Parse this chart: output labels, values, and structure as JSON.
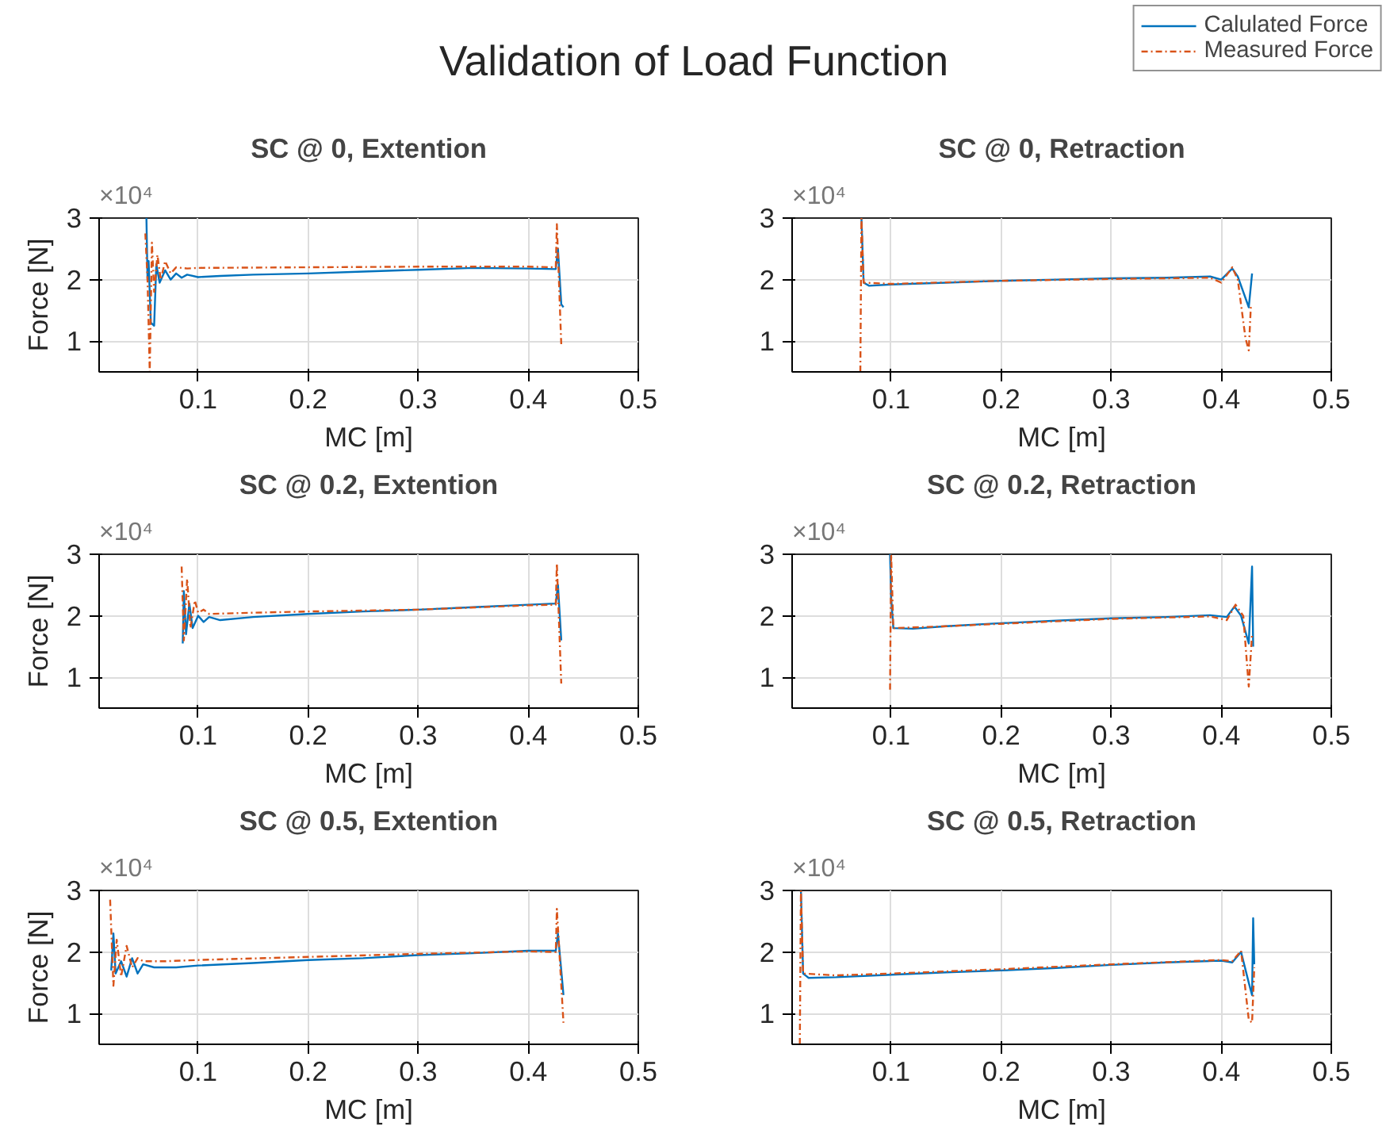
{
  "chart_data": [
    {
      "type": "other",
      "title": "Validation of Load Function"
    },
    {
      "type": "line",
      "title": "SC @ 0, Extention",
      "xlabel": "MC [m]",
      "ylabel": "Force [N]",
      "annotations": [
        "×10⁴"
      ],
      "xlim": [
        0.01,
        0.5
      ],
      "ylim": [
        0.5,
        3
      ],
      "xticks": [
        0.1,
        0.2,
        0.3,
        0.4,
        0.5
      ],
      "yticks": [
        1,
        2,
        3
      ],
      "grid": true,
      "series": [
        {
          "name": "Calulated Force",
          "color": "#0072bd",
          "line_style": "solid",
          "x": [
            0.053,
            0.054,
            0.055,
            0.057,
            0.06,
            0.062,
            0.065,
            0.07,
            0.075,
            0.08,
            0.085,
            0.09,
            0.1,
            0.12,
            0.15,
            0.2,
            0.25,
            0.3,
            0.35,
            0.4,
            0.425,
            0.427,
            0.43,
            0.432
          ],
          "values": [
            3.0,
            2.0,
            2.3,
            1.3,
            1.25,
            2.25,
            1.95,
            2.15,
            2.0,
            2.1,
            2.03,
            2.08,
            2.04,
            2.06,
            2.08,
            2.1,
            2.13,
            2.16,
            2.19,
            2.18,
            2.17,
            2.5,
            1.6,
            1.55
          ]
        },
        {
          "name": "Measured Force",
          "color": "#d95319",
          "line_style": "dashdot",
          "x": [
            0.052,
            0.054,
            0.056,
            0.058,
            0.06,
            0.063,
            0.066,
            0.07,
            0.075,
            0.08,
            0.09,
            0.1,
            0.2,
            0.3,
            0.4,
            0.425,
            0.426,
            0.43
          ],
          "values": [
            2.75,
            2.0,
            0.5,
            2.6,
            1.8,
            2.4,
            2.0,
            2.3,
            2.1,
            2.2,
            2.18,
            2.19,
            2.2,
            2.21,
            2.21,
            2.2,
            2.9,
            0.95
          ]
        }
      ]
    },
    {
      "type": "line",
      "title": "SC @ 0, Retraction",
      "xlabel": "MC [m]",
      "annotations": [
        "×10⁴"
      ],
      "xlim": [
        0.01,
        0.5
      ],
      "ylim": [
        0.5,
        3
      ],
      "xticks": [
        0.1,
        0.2,
        0.3,
        0.4,
        0.5
      ],
      "yticks": [
        1,
        2,
        3
      ],
      "grid": true,
      "series": [
        {
          "color": "#0072bd",
          "line_style": "solid",
          "x": [
            0.073,
            0.075,
            0.08,
            0.1,
            0.15,
            0.2,
            0.25,
            0.3,
            0.35,
            0.39,
            0.4,
            0.41,
            0.415,
            0.425,
            0.428
          ],
          "values": [
            3.0,
            1.95,
            1.9,
            1.92,
            1.95,
            1.98,
            2.0,
            2.02,
            2.03,
            2.05,
            2.0,
            2.18,
            2.05,
            1.55,
            2.1
          ]
        },
        {
          "color": "#d95319",
          "line_style": "dashdot",
          "x": [
            0.072,
            0.073,
            0.075,
            0.1,
            0.2,
            0.3,
            0.39,
            0.4,
            0.41,
            0.415,
            0.422,
            0.425,
            0.427
          ],
          "values": [
            0.5,
            3.0,
            1.95,
            1.93,
            1.98,
            2.01,
            2.03,
            1.95,
            2.2,
            2.0,
            1.05,
            0.85,
            1.6
          ]
        }
      ]
    },
    {
      "type": "line",
      "title": "SC @ 0.2, Extention",
      "xlabel": "MC [m]",
      "ylabel": "Force [N]",
      "annotations": [
        "×10⁴"
      ],
      "xlim": [
        0.01,
        0.5
      ],
      "ylim": [
        0.5,
        3
      ],
      "xticks": [
        0.1,
        0.2,
        0.3,
        0.4,
        0.5
      ],
      "yticks": [
        1,
        2,
        3
      ],
      "grid": true,
      "series": [
        {
          "color": "#0072bd",
          "line_style": "solid",
          "x": [
            0.086,
            0.087,
            0.089,
            0.092,
            0.095,
            0.1,
            0.105,
            0.11,
            0.12,
            0.15,
            0.2,
            0.25,
            0.3,
            0.35,
            0.4,
            0.425,
            0.427,
            0.43
          ],
          "values": [
            1.55,
            2.4,
            1.7,
            2.2,
            1.8,
            2.0,
            1.9,
            1.98,
            1.93,
            1.98,
            2.03,
            2.07,
            2.1,
            2.14,
            2.18,
            2.2,
            2.5,
            1.6
          ]
        },
        {
          "color": "#d95319",
          "line_style": "dashdot",
          "x": [
            0.085,
            0.087,
            0.09,
            0.093,
            0.097,
            0.1,
            0.105,
            0.11,
            0.15,
            0.2,
            0.3,
            0.4,
            0.425,
            0.426,
            0.43
          ],
          "values": [
            2.8,
            1.6,
            2.6,
            1.8,
            2.25,
            2.05,
            2.1,
            2.03,
            2.05,
            2.07,
            2.1,
            2.17,
            2.18,
            2.85,
            0.9
          ]
        }
      ]
    },
    {
      "type": "line",
      "title": "SC @ 0.2, Retraction",
      "xlabel": "MC [m]",
      "annotations": [
        "×10⁴"
      ],
      "xlim": [
        0.01,
        0.5
      ],
      "ylim": [
        0.5,
        3
      ],
      "xticks": [
        0.1,
        0.2,
        0.3,
        0.4,
        0.5
      ],
      "yticks": [
        1,
        2,
        3
      ],
      "grid": true,
      "series": [
        {
          "color": "#0072bd",
          "line_style": "solid",
          "x": [
            0.099,
            0.1,
            0.102,
            0.12,
            0.15,
            0.2,
            0.25,
            0.3,
            0.35,
            0.39,
            0.405,
            0.412,
            0.418,
            0.425,
            0.428,
            0.429
          ],
          "values": [
            3.0,
            2.3,
            1.8,
            1.79,
            1.83,
            1.88,
            1.92,
            1.96,
            1.98,
            2.01,
            1.98,
            2.15,
            2.0,
            1.55,
            2.8,
            1.5
          ]
        },
        {
          "color": "#d95319",
          "line_style": "dashdot",
          "x": [
            0.099,
            0.1,
            0.102,
            0.15,
            0.2,
            0.3,
            0.39,
            0.405,
            0.413,
            0.42,
            0.425,
            0.428
          ],
          "values": [
            0.8,
            3.0,
            1.8,
            1.83,
            1.87,
            1.95,
            1.99,
            1.93,
            2.18,
            2.0,
            0.85,
            1.7
          ]
        }
      ]
    },
    {
      "type": "line",
      "title": "SC @ 0.5, Extention",
      "xlabel": "MC [m]",
      "ylabel": "Force [N]",
      "annotations": [
        "×10⁴"
      ],
      "xlim": [
        0.01,
        0.5
      ],
      "ylim": [
        0.5,
        3
      ],
      "xticks": [
        0.1,
        0.2,
        0.3,
        0.4,
        0.5
      ],
      "yticks": [
        1,
        2,
        3
      ],
      "grid": true,
      "series": [
        {
          "color": "#0072bd",
          "line_style": "solid",
          "x": [
            0.021,
            0.023,
            0.025,
            0.03,
            0.035,
            0.04,
            0.045,
            0.05,
            0.06,
            0.08,
            0.1,
            0.15,
            0.2,
            0.25,
            0.3,
            0.35,
            0.4,
            0.425,
            0.427,
            0.432
          ],
          "values": [
            1.7,
            2.3,
            1.65,
            1.85,
            1.6,
            1.9,
            1.65,
            1.8,
            1.75,
            1.75,
            1.78,
            1.82,
            1.87,
            1.9,
            1.95,
            1.98,
            2.02,
            2.02,
            2.3,
            1.3
          ]
        },
        {
          "color": "#d95319",
          "line_style": "dashdot",
          "x": [
            0.02,
            0.023,
            0.026,
            0.03,
            0.035,
            0.04,
            0.045,
            0.05,
            0.07,
            0.1,
            0.2,
            0.3,
            0.4,
            0.425,
            0.426,
            0.432
          ],
          "values": [
            2.85,
            1.45,
            2.2,
            1.6,
            2.1,
            1.75,
            1.9,
            1.85,
            1.85,
            1.87,
            1.92,
            1.97,
            2.01,
            2.0,
            2.7,
            0.85
          ]
        }
      ]
    },
    {
      "type": "line",
      "title": "SC @ 0.5, Retraction",
      "xlabel": "MC [m]",
      "annotations": [
        "×10⁴"
      ],
      "xlim": [
        0.01,
        0.5
      ],
      "ylim": [
        0.5,
        3
      ],
      "xticks": [
        0.1,
        0.2,
        0.3,
        0.4,
        0.5
      ],
      "yticks": [
        1,
        2,
        3
      ],
      "grid": true,
      "series": [
        {
          "color": "#0072bd",
          "line_style": "solid",
          "x": [
            0.018,
            0.02,
            0.025,
            0.05,
            0.1,
            0.15,
            0.2,
            0.25,
            0.3,
            0.35,
            0.4,
            0.41,
            0.418,
            0.425,
            0.428,
            0.429,
            0.43
          ],
          "values": [
            3.0,
            1.65,
            1.58,
            1.59,
            1.63,
            1.67,
            1.7,
            1.74,
            1.79,
            1.83,
            1.86,
            1.83,
            2.0,
            1.5,
            1.3,
            2.55,
            1.8
          ]
        },
        {
          "color": "#d95319",
          "line_style": "dashdot",
          "x": [
            0.017,
            0.018,
            0.02,
            0.05,
            0.1,
            0.2,
            0.3,
            0.4,
            0.41,
            0.418,
            0.425,
            0.428,
            0.43
          ],
          "values": [
            0.5,
            3.0,
            1.65,
            1.62,
            1.65,
            1.72,
            1.8,
            1.87,
            1.85,
            2.02,
            0.9,
            0.85,
            1.75
          ]
        }
      ]
    }
  ]
}
